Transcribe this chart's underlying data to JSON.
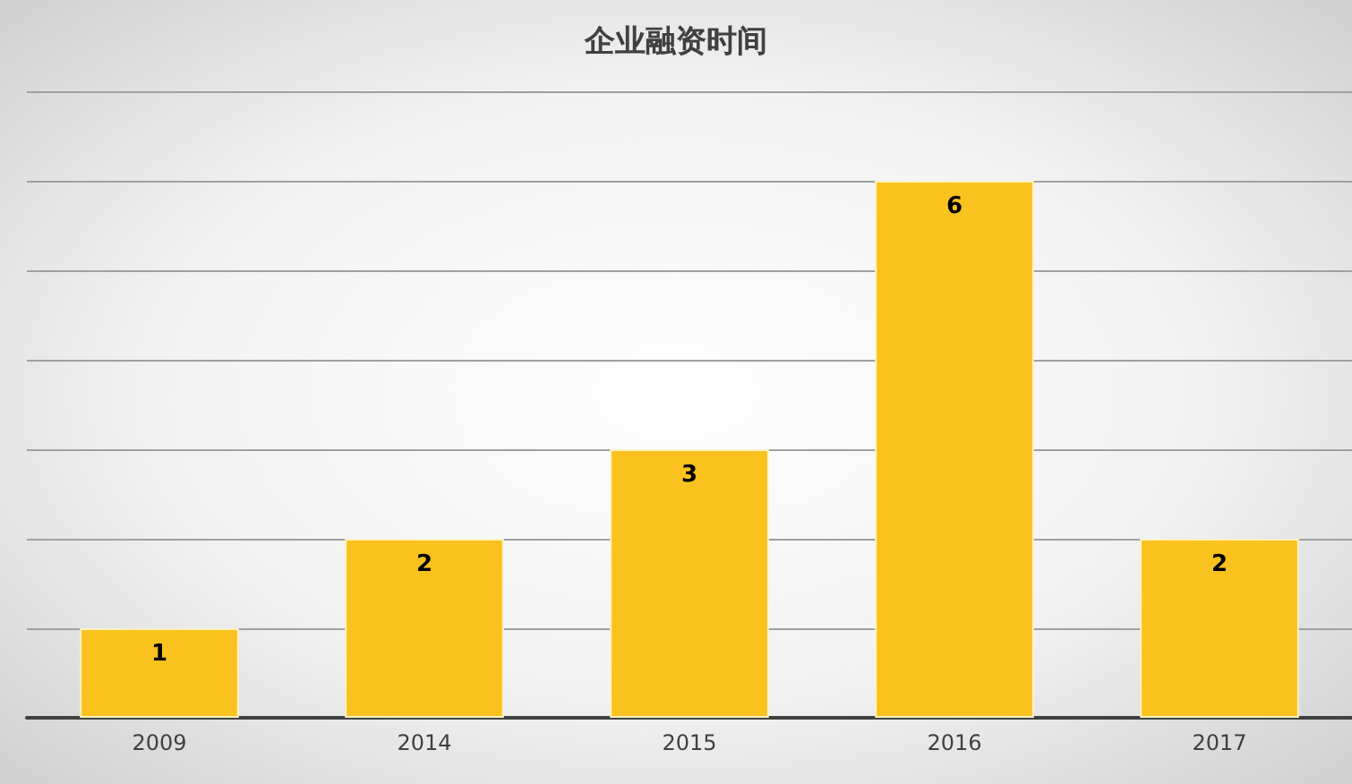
{
  "chart_data": {
    "type": "bar",
    "title": "企业融资时间",
    "categories": [
      "2009",
      "2014",
      "2015",
      "2016",
      "2017"
    ],
    "values": [
      1,
      2,
      3,
      6,
      2
    ],
    "color": "#f9c21f",
    "ylim": [
      0,
      7
    ],
    "yticks": [
      {
        "value": 0,
        "label": null
      },
      {
        "value": 1,
        "label": null
      },
      {
        "value": 2,
        "label": null
      },
      {
        "value": 3,
        "label": null
      },
      {
        "value": 4,
        "label": null
      },
      {
        "value": 5,
        "label": null
      },
      {
        "value": 6,
        "label": null
      },
      {
        "value": 7,
        "label": null
      }
    ],
    "grid": "y",
    "tick_labels": "x",
    "data_labels": true
  }
}
